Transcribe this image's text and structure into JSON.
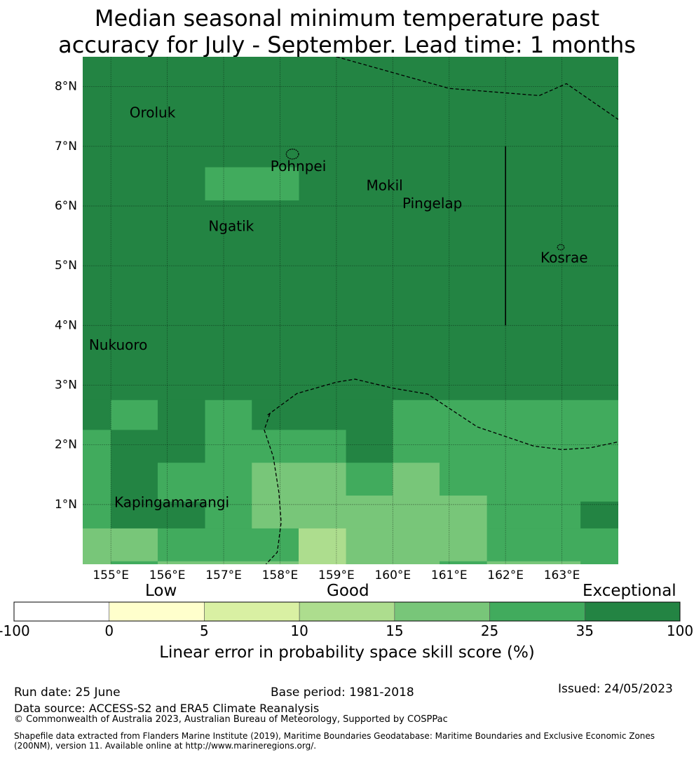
{
  "title": {
    "line1": "Median seasonal minimum temperature past",
    "line2": "accuracy for July - September. Lead time: 1 months"
  },
  "map": {
    "lon_range": [
      154.5,
      164.0
    ],
    "lat_range": [
      0.0,
      8.5
    ],
    "lon_ticks": [
      {
        "value": 155,
        "label": "155°E"
      },
      {
        "value": 156,
        "label": "156°E"
      },
      {
        "value": 157,
        "label": "157°E"
      },
      {
        "value": 158,
        "label": "158°E"
      },
      {
        "value": 159,
        "label": "159°E"
      },
      {
        "value": 160,
        "label": "160°E"
      },
      {
        "value": 161,
        "label": "161°E"
      },
      {
        "value": 162,
        "label": "162°E"
      },
      {
        "value": 163,
        "label": "163°E"
      }
    ],
    "lat_ticks": [
      {
        "value": 1,
        "label": "1°N"
      },
      {
        "value": 2,
        "label": "2°N"
      },
      {
        "value": 3,
        "label": "3°N"
      },
      {
        "value": 4,
        "label": "4°N"
      },
      {
        "value": 5,
        "label": "5°N"
      },
      {
        "value": 6,
        "label": "6°N"
      },
      {
        "value": 7,
        "label": "7°N"
      },
      {
        "value": 8,
        "label": "8°N"
      }
    ],
    "places": [
      {
        "name": "Oroluk",
        "lon": 155.33,
        "lat": 7.55
      },
      {
        "name": "Pohnpei",
        "lon": 157.83,
        "lat": 6.65
      },
      {
        "name": "Mokil",
        "lon": 159.53,
        "lat": 6.33
      },
      {
        "name": "Pingelap",
        "lon": 160.17,
        "lat": 6.03
      },
      {
        "name": "Ngatik",
        "lon": 156.73,
        "lat": 5.65
      },
      {
        "name": "Kosrae",
        "lon": 162.62,
        "lat": 5.12
      },
      {
        "name": "Nukuoro",
        "lon": 154.61,
        "lat": 3.66
      },
      {
        "name": "Kapingamarangi",
        "lon": 155.06,
        "lat": 1.02
      }
    ],
    "islands": [
      {
        "name": "pohnpei-island",
        "lon": 158.22,
        "lat": 6.87,
        "r": 0.11
      },
      {
        "name": "kosrae-island",
        "lon": 162.98,
        "lat": 5.31,
        "r": 0.06
      }
    ],
    "cells": [
      {
        "lon0": 154.5,
        "lon1": 164.0,
        "lat0": 2.75,
        "lat1": 8.5,
        "cls": "35-100"
      },
      {
        "lon0": 156.67,
        "lon1": 158.33,
        "lat0": 6.1,
        "lat1": 6.65,
        "cls": "25-35"
      },
      {
        "lon0": 154.5,
        "lon1": 155.0,
        "lat0": 2.25,
        "lat1": 2.75,
        "cls": "35-100"
      },
      {
        "lon0": 155.0,
        "lon1": 155.83,
        "lat0": 2.25,
        "lat1": 2.75,
        "cls": "25-35"
      },
      {
        "lon0": 155.83,
        "lon1": 156.67,
        "lat0": 2.25,
        "lat1": 2.75,
        "cls": "35-100"
      },
      {
        "lon0": 156.67,
        "lon1": 157.5,
        "lat0": 2.25,
        "lat1": 2.75,
        "cls": "25-35"
      },
      {
        "lon0": 157.5,
        "lon1": 160.0,
        "lat0": 2.25,
        "lat1": 2.75,
        "cls": "35-100"
      },
      {
        "lon0": 160.0,
        "lon1": 164.0,
        "lat0": 2.25,
        "lat1": 2.75,
        "cls": "25-35"
      },
      {
        "lon0": 154.5,
        "lon1": 155.0,
        "lat0": 1.7,
        "lat1": 2.25,
        "cls": "25-35"
      },
      {
        "lon0": 155.0,
        "lon1": 156.67,
        "lat0": 1.7,
        "lat1": 2.25,
        "cls": "35-100"
      },
      {
        "lon0": 156.67,
        "lon1": 159.17,
        "lat0": 1.7,
        "lat1": 2.25,
        "cls": "25-35"
      },
      {
        "lon0": 159.17,
        "lon1": 160.0,
        "lat0": 1.7,
        "lat1": 2.25,
        "cls": "35-100"
      },
      {
        "lon0": 160.0,
        "lon1": 164.0,
        "lat0": 1.7,
        "lat1": 2.25,
        "cls": "25-35"
      },
      {
        "lon0": 154.5,
        "lon1": 155.0,
        "lat0": 1.15,
        "lat1": 1.7,
        "cls": "25-35"
      },
      {
        "lon0": 155.0,
        "lon1": 155.83,
        "lat0": 1.15,
        "lat1": 1.7,
        "cls": "35-100"
      },
      {
        "lon0": 155.83,
        "lon1": 157.5,
        "lat0": 1.15,
        "lat1": 1.7,
        "cls": "25-35"
      },
      {
        "lon0": 157.5,
        "lon1": 159.17,
        "lat0": 1.15,
        "lat1": 1.7,
        "cls": "15-25"
      },
      {
        "lon0": 159.17,
        "lon1": 160.0,
        "lat0": 1.15,
        "lat1": 1.7,
        "cls": "25-35"
      },
      {
        "lon0": 160.0,
        "lon1": 160.83,
        "lat0": 1.15,
        "lat1": 1.7,
        "cls": "15-25"
      },
      {
        "lon0": 160.83,
        "lon1": 164.0,
        "lat0": 1.15,
        "lat1": 1.7,
        "cls": "25-35"
      },
      {
        "lon0": 154.5,
        "lon1": 155.0,
        "lat0": 1.05,
        "lat1": 1.15,
        "cls": "25-35"
      },
      {
        "lon0": 155.0,
        "lon1": 155.83,
        "lat0": 1.05,
        "lat1": 1.15,
        "cls": "35-100"
      },
      {
        "lon0": 155.83,
        "lon1": 157.5,
        "lat0": 1.05,
        "lat1": 1.15,
        "cls": "25-35"
      },
      {
        "lon0": 157.5,
        "lon1": 161.67,
        "lat0": 1.05,
        "lat1": 1.15,
        "cls": "15-25"
      },
      {
        "lon0": 161.67,
        "lon1": 164.0,
        "lat0": 1.05,
        "lat1": 1.15,
        "cls": "25-35"
      },
      {
        "lon0": 154.5,
        "lon1": 155.0,
        "lat0": 0.6,
        "lat1": 1.05,
        "cls": "25-35"
      },
      {
        "lon0": 155.0,
        "lon1": 156.67,
        "lat0": 0.6,
        "lat1": 1.05,
        "cls": "35-100"
      },
      {
        "lon0": 156.67,
        "lon1": 157.5,
        "lat0": 0.6,
        "lat1": 1.05,
        "cls": "25-35"
      },
      {
        "lon0": 157.5,
        "lon1": 161.67,
        "lat0": 0.6,
        "lat1": 1.05,
        "cls": "15-25"
      },
      {
        "lon0": 161.67,
        "lon1": 163.33,
        "lat0": 0.6,
        "lat1": 1.05,
        "cls": "25-35"
      },
      {
        "lon0": 163.33,
        "lon1": 164.0,
        "lat0": 0.6,
        "lat1": 1.05,
        "cls": "35-100"
      },
      {
        "lon0": 154.5,
        "lon1": 155.83,
        "lat0": 0.05,
        "lat1": 0.6,
        "cls": "15-25"
      },
      {
        "lon0": 155.83,
        "lon1": 158.33,
        "lat0": 0.05,
        "lat1": 0.6,
        "cls": "25-35"
      },
      {
        "lon0": 158.33,
        "lon1": 159.17,
        "lat0": 0.05,
        "lat1": 0.6,
        "cls": "10-15"
      },
      {
        "lon0": 159.17,
        "lon1": 161.67,
        "lat0": 0.05,
        "lat1": 0.6,
        "cls": "15-25"
      },
      {
        "lon0": 161.67,
        "lon1": 164.0,
        "lat0": 0.05,
        "lat1": 0.6,
        "cls": "25-35"
      },
      {
        "lon0": 154.5,
        "lon1": 155.0,
        "lat0": 0.0,
        "lat1": 0.05,
        "cls": "15-25"
      },
      {
        "lon0": 155.0,
        "lon1": 155.83,
        "lat0": 0.0,
        "lat1": 0.05,
        "cls": "25-35"
      },
      {
        "lon0": 155.83,
        "lon1": 158.33,
        "lat0": 0.0,
        "lat1": 0.05,
        "cls": "15-25"
      },
      {
        "lon0": 158.33,
        "lon1": 159.17,
        "lat0": 0.0,
        "lat1": 0.05,
        "cls": "10-15"
      },
      {
        "lon0": 159.17,
        "lon1": 160.83,
        "lat0": 0.0,
        "lat1": 0.05,
        "cls": "15-25"
      },
      {
        "lon0": 160.83,
        "lon1": 161.67,
        "lat0": 0.0,
        "lat1": 0.05,
        "cls": "25-35"
      },
      {
        "lon0": 161.67,
        "lon1": 163.33,
        "lat0": 0.0,
        "lat1": 0.05,
        "cls": "15-25"
      },
      {
        "lon0": 163.33,
        "lon1": 164.0,
        "lat0": 0.0,
        "lat1": 0.05,
        "cls": "25-35"
      }
    ],
    "eez_boundaries": [
      [
        [
          159.0,
          8.5
        ],
        [
          161.0,
          7.97
        ],
        [
          162.6,
          7.85
        ],
        [
          163.08,
          8.05
        ],
        [
          164.0,
          7.45
        ]
      ],
      [
        [
          157.78,
          2.5
        ],
        [
          158.3,
          2.86
        ],
        [
          159.0,
          3.05
        ],
        [
          159.33,
          3.1
        ],
        [
          160.0,
          2.95
        ],
        [
          160.62,
          2.85
        ],
        [
          161.5,
          2.3
        ],
        [
          162.5,
          1.98
        ],
        [
          163.0,
          1.92
        ],
        [
          163.5,
          1.95
        ],
        [
          164.0,
          2.05
        ]
      ],
      [
        [
          157.82,
          2.52
        ],
        [
          157.72,
          2.25
        ],
        [
          157.88,
          1.8
        ],
        [
          157.98,
          1.2
        ],
        [
          158.02,
          0.7
        ],
        [
          157.95,
          0.2
        ],
        [
          157.75,
          0.0
        ]
      ]
    ],
    "solid_lines": [
      [
        [
          162.0,
          7.0
        ],
        [
          162.0,
          4.0
        ]
      ]
    ]
  },
  "colorbar": {
    "categories": [
      {
        "label": "Low",
        "position": "0-10"
      },
      {
        "label": "Good",
        "position": "10-25"
      },
      {
        "label": "Exceptional",
        "position": "35-100"
      }
    ],
    "bins": [
      {
        "range": "-100-0",
        "color": "#ffffff"
      },
      {
        "range": "0-5",
        "color": "#ffffcc"
      },
      {
        "range": "5-10",
        "color": "#d9f0a3"
      },
      {
        "range": "10-15",
        "color": "#addd8e"
      },
      {
        "range": "15-25",
        "color": "#78c679"
      },
      {
        "range": "25-35",
        "color": "#41ab5d"
      },
      {
        "range": "35-100",
        "color": "#238443"
      }
    ],
    "ticks": [
      "-100",
      "0",
      "5",
      "10",
      "15",
      "25",
      "35",
      "100"
    ],
    "title": "Linear error in probability space skill score (%)"
  },
  "footer": {
    "run_date": "Run date: 25 June",
    "base_period": "Base period: 1981-2018",
    "issued": "Issued: 24/05/2023",
    "data_source": "Data source: ACCESS-S2 and ERA5 Climate Reanalysis",
    "copyright": "© Commonwealth of Australia 2023, Australian Bureau of Meteorology, Supported by COSPPac",
    "shapefile_line1": "Shapefile data extracted from Flanders Marine Institute (2019), Maritime Boundaries Geodatabase: Maritime Boundaries and Exclusive Economic Zones",
    "shapefile_line2": "(200NM), version 11. Available online at http://www.marineregions.org/."
  }
}
